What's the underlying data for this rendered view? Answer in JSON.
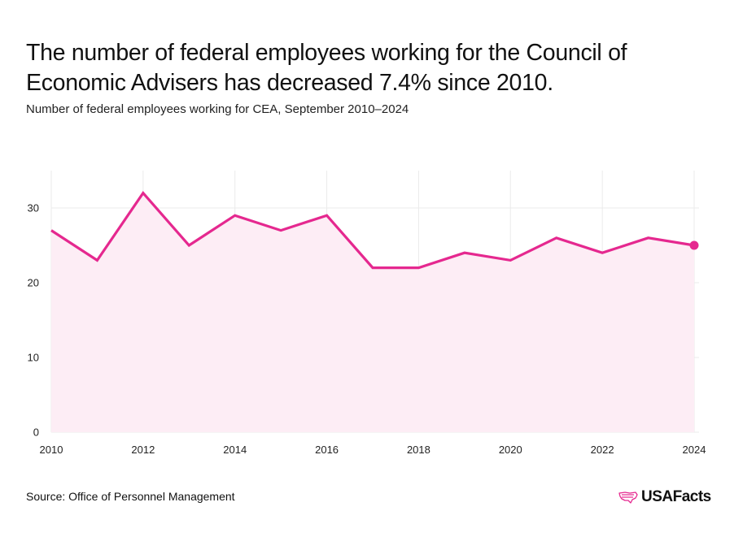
{
  "title": "The number of federal employees working for the Council of Economic Advisers has decreased 7.4% since 2010.",
  "subtitle": "Number of federal employees working for CEA, September 2010–2024",
  "source": "Source: Office of Personnel Management",
  "logo": {
    "text": "USAFacts",
    "icon": "usa-flag-map-icon"
  },
  "colors": {
    "line": "#e5288f",
    "area": "#fdedf5",
    "grid": "#ebebeb"
  },
  "chart_data": {
    "type": "area",
    "x": [
      2010,
      2011,
      2012,
      2013,
      2014,
      2015,
      2016,
      2017,
      2018,
      2019,
      2020,
      2021,
      2022,
      2023,
      2024
    ],
    "series": [
      {
        "values": [
          27,
          23,
          32,
          25,
          29,
          27,
          29,
          22,
          22,
          24,
          23,
          26,
          24,
          26,
          25
        ]
      }
    ],
    "x_ticks": [
      2010,
      2012,
      2014,
      2016,
      2018,
      2020,
      2022,
      2024
    ],
    "y_ticks": [
      0,
      10,
      20,
      30
    ],
    "xlim": [
      2010,
      2024
    ],
    "ylim": [
      0,
      35
    ],
    "grid": true,
    "highlight_last_point": true
  }
}
